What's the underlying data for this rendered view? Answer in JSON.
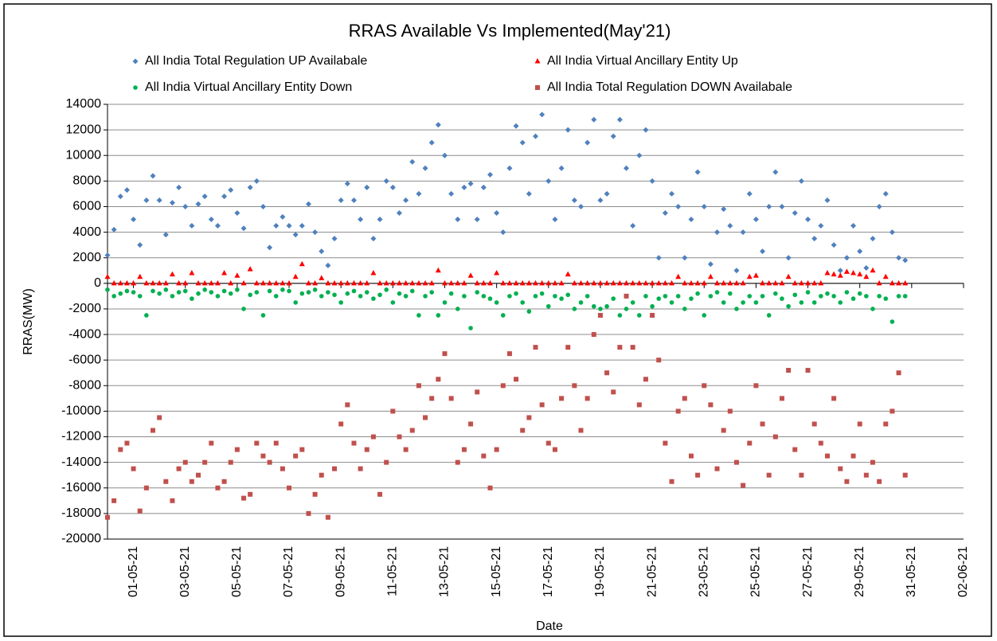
{
  "chart_data": {
    "type": "scatter",
    "title": "RRAS Available Vs Implemented(May'21)",
    "x_label": "Date",
    "y_label": "RRAS(MW)",
    "x": [
      44316,
      44316.25,
      44316.5,
      44316.75,
      44317,
      44317.25,
      44317.5,
      44317.75,
      44318,
      44318.25,
      44318.5,
      44318.75,
      44319,
      44319.25,
      44319.5,
      44319.75,
      44320,
      44320.25,
      44320.5,
      44320.75,
      44321,
      44321.25,
      44321.5,
      44321.75,
      44322,
      44322.25,
      44322.5,
      44322.75,
      44323,
      44323.25,
      44323.5,
      44323.75,
      44324,
      44324.25,
      44324.5,
      44324.75,
      44325,
      44325.25,
      44325.5,
      44325.75,
      44326,
      44326.25,
      44326.5,
      44326.75,
      44327,
      44327.25,
      44327.5,
      44327.75,
      44328,
      44328.25,
      44328.5,
      44328.75,
      44329,
      44329.25,
      44329.5,
      44329.75,
      44330,
      44330.25,
      44330.5,
      44330.75,
      44331,
      44331.25,
      44331.5,
      44331.75,
      44332,
      44332.25,
      44332.5,
      44332.75,
      44333,
      44333.25,
      44333.5,
      44333.75,
      44334,
      44334.25,
      44334.5,
      44334.75,
      44335,
      44335.25,
      44335.5,
      44335.75,
      44336,
      44336.25,
      44336.5,
      44336.75,
      44337,
      44337.25,
      44337.5,
      44337.75,
      44338,
      44338.25,
      44338.5,
      44338.75,
      44339,
      44339.25,
      44339.5,
      44339.75,
      44340,
      44340.25,
      44340.5,
      44340.75,
      44341,
      44341.25,
      44341.5,
      44341.75,
      44342,
      44342.25,
      44342.5,
      44342.75,
      44343,
      44343.25,
      44343.5,
      44343.75,
      44344,
      44344.25,
      44344.5,
      44344.75,
      44345,
      44345.25,
      44345.5,
      44345.75,
      44346,
      44346.25,
      44346.5,
      44346.75
    ],
    "series": [
      {
        "name": "All India Total Regulation UP Availabale",
        "color": "#4f81bd",
        "marker": "diamond",
        "values": [
          2200,
          4200,
          6800,
          7300,
          5000,
          3000,
          6500,
          8400,
          6500,
          3800,
          6300,
          7500,
          6000,
          4500,
          6200,
          6800,
          5000,
          4500,
          6800,
          7300,
          5500,
          4300,
          7500,
          8000,
          6000,
          2800,
          4500,
          5200,
          4500,
          3800,
          4500,
          6200,
          4000,
          2500,
          1400,
          3500,
          6500,
          7800,
          6500,
          5000,
          7500,
          3500,
          5000,
          8000,
          7500,
          5500,
          6500,
          9500,
          7000,
          9000,
          11000,
          12400,
          10000,
          7000,
          5000,
          7500,
          7800,
          5000,
          7500,
          8500,
          5500,
          4000,
          9000,
          12300,
          11000,
          7000,
          11500,
          13200,
          8000,
          5000,
          9000,
          12000,
          6500,
          6000,
          11000,
          12800,
          6500,
          7000,
          11500,
          12800,
          9000,
          4500,
          10000,
          12000,
          8000,
          2000,
          5500,
          7000,
          6000,
          2000,
          5000,
          8700,
          6000,
          1500,
          4000,
          5800,
          4500,
          1000,
          4000,
          7000,
          5000,
          2500,
          6000,
          8700,
          6000,
          2000,
          5500,
          8000,
          5000,
          3500,
          4500,
          6500,
          3000,
          1000,
          2000,
          4500,
          2500,
          1200,
          3500,
          6000,
          7000,
          4000,
          2000,
          1800
        ]
      },
      {
        "name": "All India Virtual Ancillary Entity Up",
        "color": "#ff0000",
        "marker": "triangle",
        "values": [
          500,
          0,
          0,
          0,
          0,
          500,
          0,
          0,
          0,
          0,
          700,
          0,
          0,
          800,
          0,
          0,
          0,
          0,
          800,
          0,
          600,
          0,
          1100,
          0,
          0,
          0,
          0,
          0,
          0,
          500,
          1500,
          0,
          0,
          400,
          0,
          0,
          0,
          0,
          0,
          0,
          0,
          800,
          0,
          0,
          0,
          0,
          0,
          0,
          0,
          0,
          0,
          1000,
          0,
          0,
          0,
          0,
          600,
          0,
          0,
          0,
          800,
          0,
          0,
          0,
          0,
          0,
          0,
          0,
          0,
          0,
          0,
          700,
          0,
          0,
          0,
          0,
          0,
          0,
          0,
          0,
          0,
          0,
          0,
          0,
          0,
          0,
          0,
          0,
          500,
          0,
          0,
          0,
          0,
          500,
          0,
          0,
          0,
          0,
          0,
          500,
          600,
          0,
          0,
          0,
          0,
          500,
          0,
          0,
          0,
          0,
          0,
          800,
          700,
          600,
          900,
          800,
          700,
          500,
          1000,
          0,
          500,
          0,
          0,
          0
        ]
      },
      {
        "name": "All India Virtual Ancillary Entity Down",
        "color": "#00b050",
        "marker": "circle",
        "values": [
          -500,
          -1000,
          -800,
          -600,
          -700,
          -1000,
          -2500,
          -600,
          -800,
          -500,
          -1000,
          -700,
          -600,
          -1200,
          -800,
          -500,
          -700,
          -1000,
          -600,
          -800,
          -500,
          -2000,
          -900,
          -700,
          -2500,
          -600,
          -1000,
          -500,
          -600,
          -1500,
          -800,
          -700,
          -500,
          -1000,
          -700,
          -900,
          -1500,
          -800,
          -600,
          -1000,
          -700,
          -1200,
          -900,
          -500,
          -1500,
          -800,
          -1000,
          -600,
          -2500,
          -1000,
          -700,
          -2500,
          -1500,
          -800,
          -2000,
          -1000,
          -3500,
          -700,
          -1000,
          -1200,
          -1500,
          -2500,
          -1000,
          -800,
          -1500,
          -2200,
          -1000,
          -800,
          -1800,
          -1000,
          -1200,
          -900,
          -2000,
          -1500,
          -1000,
          -1800,
          -2000,
          -1800,
          -1200,
          -2500,
          -2000,
          -1500,
          -2500,
          -1000,
          -1800,
          -1200,
          -1000,
          -1500,
          -1000,
          -2000,
          -1200,
          -800,
          -2500,
          -1000,
          -700,
          -1500,
          -800,
          -2000,
          -1500,
          -1000,
          -1500,
          -1000,
          -2500,
          -800,
          -1200,
          -1800,
          -900,
          -1500,
          -700,
          -1500,
          -1000,
          -800,
          -1000,
          -1500,
          -700,
          -1200,
          -800,
          -1000,
          -2000,
          -1000,
          -1200,
          -3000,
          -1000,
          -1000
        ]
      },
      {
        "name": "All India Total  Regulation DOWN Availabale",
        "color": "#c0504d",
        "marker": "square",
        "values": [
          -18300,
          -17000,
          -13000,
          -12500,
          -14500,
          -17800,
          -16000,
          -11500,
          -10500,
          -15500,
          -17000,
          -14500,
          -14000,
          -15500,
          -15000,
          -14000,
          -12500,
          -16000,
          -15500,
          -14000,
          -13000,
          -16800,
          -16500,
          -12500,
          -13500,
          -14000,
          -12500,
          -14500,
          -16000,
          -13500,
          -13000,
          -18000,
          -16500,
          -15000,
          -18300,
          -14500,
          -11000,
          -9500,
          -12500,
          -14500,
          -13000,
          -12000,
          -16500,
          -14000,
          -10000,
          -12000,
          -13000,
          -11500,
          -8000,
          -10500,
          -9000,
          -7500,
          -5500,
          -9000,
          -14000,
          -13000,
          -11000,
          -8500,
          -13500,
          -16000,
          -13000,
          -8000,
          -5500,
          -7500,
          -11500,
          -10500,
          -5000,
          -9500,
          -12500,
          -13000,
          -9000,
          -5000,
          -8000,
          -11500,
          -9000,
          -4000,
          -2500,
          -7000,
          -8500,
          -5000,
          -1000,
          -5000,
          -9500,
          -7500,
          -2500,
          -6000,
          -12500,
          -15500,
          -10000,
          -9000,
          -13500,
          -15000,
          -8000,
          -9500,
          -14500,
          -11500,
          -10000,
          -14000,
          -15800,
          -12500,
          -8000,
          -11000,
          -15000,
          -12000,
          -9000,
          -6800,
          -13000,
          -15000,
          -6800,
          -11000,
          -12500,
          -13500,
          -9000,
          -14500,
          -15500,
          -13500,
          -11000,
          -15000,
          -14000,
          -15500,
          -11000,
          -10000,
          -7000,
          -15000
        ]
      }
    ],
    "xlim": [
      44316,
      44349
    ],
    "xticks": [
      {
        "value": 44317,
        "label": "01-05-21"
      },
      {
        "value": 44319,
        "label": "03-05-21"
      },
      {
        "value": 44321,
        "label": "05-05-21"
      },
      {
        "value": 44323,
        "label": "07-05-21"
      },
      {
        "value": 44325,
        "label": "09-05-21"
      },
      {
        "value": 44327,
        "label": "11-05-21"
      },
      {
        "value": 44329,
        "label": "13-05-21"
      },
      {
        "value": 44331,
        "label": "15-05-21"
      },
      {
        "value": 44333,
        "label": "17-05-21"
      },
      {
        "value": 44335,
        "label": "19-05-21"
      },
      {
        "value": 44337,
        "label": "21-05-21"
      },
      {
        "value": 44339,
        "label": "23-05-21"
      },
      {
        "value": 44341,
        "label": "25-05-21"
      },
      {
        "value": 44343,
        "label": "27-05-21"
      },
      {
        "value": 44345,
        "label": "29-05-21"
      },
      {
        "value": 44347,
        "label": "31-05-21"
      },
      {
        "value": 44349,
        "label": "02-06-21"
      }
    ],
    "ylim": [
      -20000,
      14000
    ],
    "yticks": [
      -20000,
      -18000,
      -16000,
      -14000,
      -12000,
      -10000,
      -8000,
      -6000,
      -4000,
      -2000,
      0,
      2000,
      4000,
      6000,
      8000,
      10000,
      12000,
      14000
    ],
    "grid": true
  }
}
